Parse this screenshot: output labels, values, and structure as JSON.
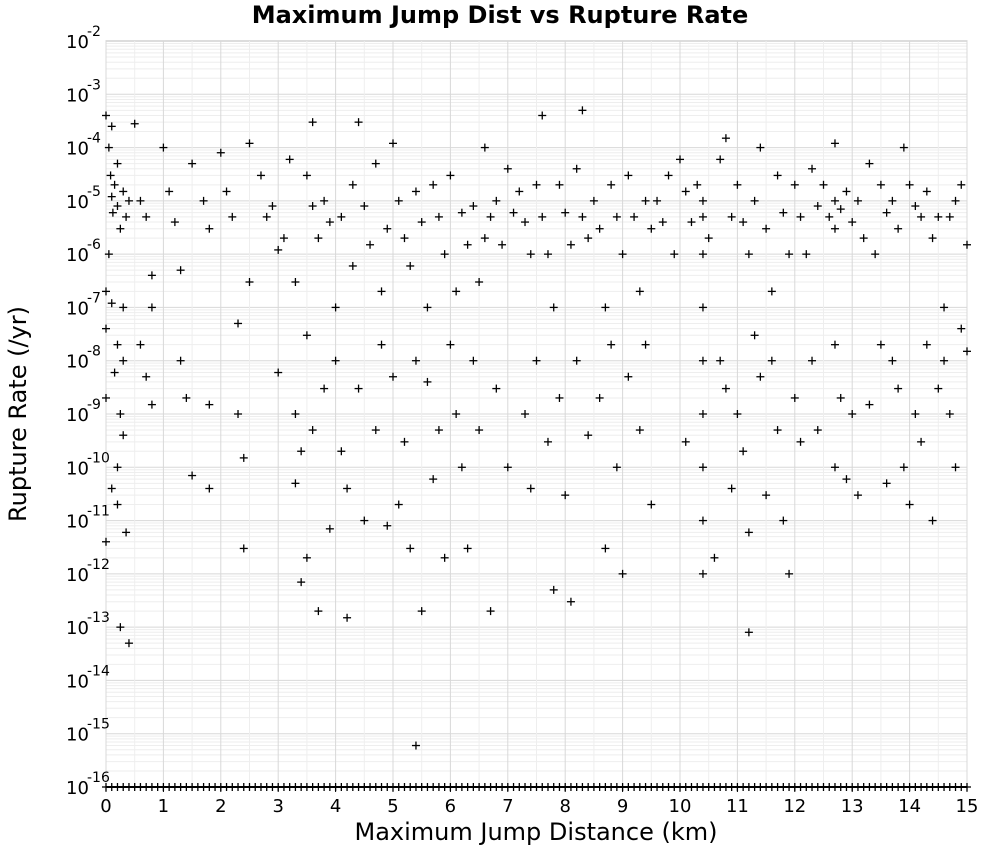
{
  "chart_data": {
    "type": "scatter",
    "title": "Maximum Jump Dist vs Rupture Rate",
    "xlabel": "Maximum Jump Distance (km)",
    "ylabel": "Rupture Rate (/yr)",
    "xlim": [
      0,
      15
    ],
    "ylim": [
      1e-16,
      0.01
    ],
    "yscale": "log",
    "grid": true,
    "marker": "+",
    "color": "#000000",
    "x_ticks": [
      "0",
      "1",
      "2",
      "3",
      "4",
      "5",
      "6",
      "7",
      "8",
      "9",
      "10",
      "11",
      "12",
      "13",
      "14",
      "15"
    ],
    "y_ticks": [
      {
        "base": "10",
        "exp": "-2"
      },
      {
        "base": "10",
        "exp": "-3"
      },
      {
        "base": "10",
        "exp": "-4"
      },
      {
        "base": "10",
        "exp": "-5"
      },
      {
        "base": "10",
        "exp": "-6"
      },
      {
        "base": "10",
        "exp": "-7"
      },
      {
        "base": "10",
        "exp": "-8"
      },
      {
        "base": "10",
        "exp": "-9"
      },
      {
        "base": "10",
        "exp": "-10"
      },
      {
        "base": "10",
        "exp": "-11"
      },
      {
        "base": "10",
        "exp": "-12"
      },
      {
        "base": "10",
        "exp": "-13"
      },
      {
        "base": "10",
        "exp": "-14"
      },
      {
        "base": "10",
        "exp": "-15"
      },
      {
        "base": "10",
        "exp": "-16"
      }
    ],
    "points": [
      [
        0.0,
        0.0004
      ],
      [
        0.05,
        0.0001
      ],
      [
        0.08,
        3e-05
      ],
      [
        0.1,
        1.2e-05
      ],
      [
        0.12,
        6e-06
      ],
      [
        0.15,
        2e-05
      ],
      [
        0.2,
        8e-06
      ],
      [
        0.25,
        3e-06
      ],
      [
        0.3,
        1.5e-05
      ],
      [
        0.35,
        5e-06
      ],
      [
        0.4,
        1e-05
      ],
      [
        0.1,
        0.00025
      ],
      [
        0.2,
        5e-05
      ],
      [
        0.05,
        1e-06
      ],
      [
        0.0,
        2e-07
      ],
      [
        0.1,
        1.2e-07
      ],
      [
        0.3,
        1e-07
      ],
      [
        0.0,
        4e-08
      ],
      [
        0.2,
        2e-08
      ],
      [
        0.3,
        1e-08
      ],
      [
        0.15,
        6e-09
      ],
      [
        0.0,
        2e-09
      ],
      [
        0.25,
        1e-09
      ],
      [
        0.3,
        4e-10
      ],
      [
        0.2,
        1e-10
      ],
      [
        0.1,
        4e-11
      ],
      [
        0.2,
        2e-11
      ],
      [
        0.35,
        6e-12
      ],
      [
        0.0,
        4e-12
      ],
      [
        0.25,
        1e-13
      ],
      [
        0.4,
        5e-14
      ],
      [
        0.5,
        0.00028
      ],
      [
        0.6,
        1e-05
      ],
      [
        0.7,
        5e-06
      ],
      [
        0.8,
        4e-07
      ],
      [
        0.8,
        1e-07
      ],
      [
        0.6,
        2e-08
      ],
      [
        0.7,
        5e-09
      ],
      [
        0.8,
        1.5e-09
      ],
      [
        1.0,
        0.0001
      ],
      [
        1.1,
        1.5e-05
      ],
      [
        1.2,
        4e-06
      ],
      [
        1.3,
        5e-07
      ],
      [
        1.3,
        1e-08
      ],
      [
        1.4,
        2e-09
      ],
      [
        1.5,
        5e-05
      ],
      [
        1.5,
        7e-11
      ],
      [
        1.7,
        1e-05
      ],
      [
        1.8,
        3e-06
      ],
      [
        1.8,
        1.5e-09
      ],
      [
        1.8,
        4e-11
      ],
      [
        2.0,
        8e-05
      ],
      [
        2.1,
        1.5e-05
      ],
      [
        2.2,
        5e-06
      ],
      [
        2.3,
        5e-08
      ],
      [
        2.3,
        1e-09
      ],
      [
        2.4,
        1.5e-10
      ],
      [
        2.4,
        3e-12
      ],
      [
        2.5,
        0.00012
      ],
      [
        2.5,
        3e-07
      ],
      [
        2.7,
        3e-05
      ],
      [
        2.8,
        5e-06
      ],
      [
        2.9,
        8e-06
      ],
      [
        3.0,
        1.2e-06
      ],
      [
        3.0,
        6e-09
      ],
      [
        3.1,
        2e-06
      ],
      [
        3.2,
        6e-05
      ],
      [
        3.3,
        3e-07
      ],
      [
        3.3,
        1e-09
      ],
      [
        3.3,
        5e-11
      ],
      [
        3.4,
        2e-10
      ],
      [
        3.4,
        7e-13
      ],
      [
        3.5,
        3e-05
      ],
      [
        3.5,
        3e-08
      ],
      [
        3.5,
        2e-12
      ],
      [
        3.6,
        0.0003
      ],
      [
        3.6,
        8e-06
      ],
      [
        3.6,
        5e-10
      ],
      [
        3.7,
        2e-06
      ],
      [
        3.7,
        2e-13
      ],
      [
        3.8,
        1e-05
      ],
      [
        3.8,
        3e-09
      ],
      [
        3.9,
        4e-06
      ],
      [
        3.9,
        7e-12
      ],
      [
        4.0,
        1e-07
      ],
      [
        4.0,
        1e-08
      ],
      [
        4.1,
        5e-06
      ],
      [
        4.1,
        2e-10
      ],
      [
        4.2,
        4e-11
      ],
      [
        4.2,
        1.5e-13
      ],
      [
        4.3,
        2e-05
      ],
      [
        4.3,
        6e-07
      ],
      [
        4.4,
        0.0003
      ],
      [
        4.4,
        3e-09
      ],
      [
        4.5,
        8e-06
      ],
      [
        4.5,
        1e-11
      ],
      [
        4.6,
        1.5e-06
      ],
      [
        4.7,
        5e-05
      ],
      [
        4.7,
        5e-10
      ],
      [
        4.8,
        2e-07
      ],
      [
        4.8,
        2e-08
      ],
      [
        4.9,
        3e-06
      ],
      [
        4.9,
        8e-12
      ],
      [
        5.0,
        0.00012
      ],
      [
        5.0,
        5e-09
      ],
      [
        5.1,
        1e-05
      ],
      [
        5.1,
        2e-11
      ],
      [
        5.2,
        2e-06
      ],
      [
        5.2,
        3e-10
      ],
      [
        5.3,
        6e-07
      ],
      [
        5.3,
        3e-12
      ],
      [
        5.4,
        1.5e-05
      ],
      [
        5.4,
        1e-08
      ],
      [
        5.4,
        6e-16
      ],
      [
        5.5,
        4e-06
      ],
      [
        5.5,
        2e-13
      ],
      [
        5.6,
        1e-07
      ],
      [
        5.6,
        4e-09
      ],
      [
        5.7,
        2e-05
      ],
      [
        5.7,
        6e-11
      ],
      [
        5.8,
        5e-06
      ],
      [
        5.8,
        5e-10
      ],
      [
        5.9,
        1e-06
      ],
      [
        5.9,
        2e-12
      ],
      [
        6.0,
        3e-05
      ],
      [
        6.0,
        2e-08
      ],
      [
        6.1,
        2e-07
      ],
      [
        6.1,
        1e-09
      ],
      [
        6.2,
        6e-06
      ],
      [
        6.2,
        1e-10
      ],
      [
        6.3,
        1.5e-06
      ],
      [
        6.3,
        3e-12
      ],
      [
        6.4,
        8e-06
      ],
      [
        6.4,
        1e-08
      ],
      [
        6.5,
        3e-07
      ],
      [
        6.5,
        5e-10
      ],
      [
        6.6,
        0.0001
      ],
      [
        6.6,
        2e-06
      ],
      [
        6.7,
        5e-06
      ],
      [
        6.7,
        2e-13
      ],
      [
        6.8,
        1e-05
      ],
      [
        6.8,
        3e-09
      ],
      [
        6.9,
        1.5e-06
      ],
      [
        7.0,
        4e-05
      ],
      [
        7.0,
        1e-10
      ],
      [
        7.1,
        6e-06
      ],
      [
        7.2,
        1.5e-05
      ],
      [
        7.3,
        4e-06
      ],
      [
        7.3,
        1e-09
      ],
      [
        7.4,
        1e-06
      ],
      [
        7.4,
        4e-11
      ],
      [
        7.5,
        2e-05
      ],
      [
        7.5,
        1e-08
      ],
      [
        7.6,
        5e-06
      ],
      [
        7.6,
        0.0004
      ],
      [
        7.7,
        1e-06
      ],
      [
        7.7,
        3e-10
      ],
      [
        7.8,
        1e-07
      ],
      [
        7.8,
        5e-13
      ],
      [
        7.9,
        2e-05
      ],
      [
        7.9,
        2e-09
      ],
      [
        8.0,
        6e-06
      ],
      [
        8.0,
        3e-11
      ],
      [
        8.1,
        1.5e-06
      ],
      [
        8.1,
        3e-13
      ],
      [
        8.2,
        4e-05
      ],
      [
        8.2,
        1e-08
      ],
      [
        8.3,
        0.0005
      ],
      [
        8.3,
        5e-06
      ],
      [
        8.4,
        2e-06
      ],
      [
        8.4,
        4e-10
      ],
      [
        8.5,
        1e-05
      ],
      [
        8.6,
        3e-06
      ],
      [
        8.6,
        2e-09
      ],
      [
        8.7,
        1e-07
      ],
      [
        8.7,
        3e-12
      ],
      [
        8.8,
        2e-05
      ],
      [
        8.8,
        2e-08
      ],
      [
        8.9,
        5e-06
      ],
      [
        8.9,
        1e-10
      ],
      [
        9.0,
        1e-06
      ],
      [
        9.0,
        1e-12
      ],
      [
        9.1,
        3e-05
      ],
      [
        9.1,
        5e-09
      ],
      [
        9.2,
        5e-06
      ],
      [
        9.3,
        2e-07
      ],
      [
        9.3,
        5e-10
      ],
      [
        9.4,
        1e-05
      ],
      [
        9.4,
        2e-08
      ],
      [
        9.5,
        3e-06
      ],
      [
        9.5,
        2e-11
      ],
      [
        9.6,
        1e-05
      ],
      [
        9.7,
        4e-06
      ],
      [
        9.8,
        3e-05
      ],
      [
        9.9,
        1e-06
      ],
      [
        10.0,
        6e-05
      ],
      [
        10.1,
        1.5e-05
      ],
      [
        10.1,
        3e-10
      ],
      [
        10.2,
        4e-06
      ],
      [
        10.3,
        2e-05
      ],
      [
        10.4,
        1e-05
      ],
      [
        10.4,
        5e-06
      ],
      [
        10.4,
        1e-06
      ],
      [
        10.4,
        1e-07
      ],
      [
        10.4,
        1e-08
      ],
      [
        10.4,
        1e-09
      ],
      [
        10.4,
        1e-10
      ],
      [
        10.4,
        1e-11
      ],
      [
        10.4,
        1e-12
      ],
      [
        10.5,
        2e-06
      ],
      [
        10.6,
        2e-12
      ],
      [
        10.7,
        6e-05
      ],
      [
        10.7,
        1e-08
      ],
      [
        10.8,
        0.00015
      ],
      [
        10.8,
        3e-09
      ],
      [
        10.9,
        5e-06
      ],
      [
        10.9,
        4e-11
      ],
      [
        11.0,
        2e-05
      ],
      [
        11.0,
        1e-09
      ],
      [
        11.1,
        4e-06
      ],
      [
        11.1,
        2e-10
      ],
      [
        11.2,
        1e-06
      ],
      [
        11.2,
        6e-12
      ],
      [
        11.2,
        8e-14
      ],
      [
        11.3,
        1e-05
      ],
      [
        11.3,
        3e-08
      ],
      [
        11.4,
        0.0001
      ],
      [
        11.4,
        5e-09
      ],
      [
        11.5,
        3e-06
      ],
      [
        11.5,
        3e-11
      ],
      [
        11.6,
        2e-07
      ],
      [
        11.6,
        1e-08
      ],
      [
        11.7,
        3e-05
      ],
      [
        11.7,
        5e-10
      ],
      [
        11.8,
        6e-06
      ],
      [
        11.8,
        1e-11
      ],
      [
        11.9,
        1e-06
      ],
      [
        11.9,
        1e-12
      ],
      [
        12.0,
        2e-05
      ],
      [
        12.0,
        2e-09
      ],
      [
        12.1,
        5e-06
      ],
      [
        12.1,
        3e-10
      ],
      [
        12.2,
        1e-06
      ],
      [
        12.3,
        4e-05
      ],
      [
        12.3,
        1e-08
      ],
      [
        12.4,
        8e-06
      ],
      [
        12.4,
        5e-10
      ],
      [
        12.5,
        2e-05
      ],
      [
        12.6,
        5e-06
      ],
      [
        12.7,
        0.00012
      ],
      [
        12.7,
        1e-05
      ],
      [
        12.7,
        3e-06
      ],
      [
        12.7,
        2e-08
      ],
      [
        12.7,
        1e-10
      ],
      [
        12.8,
        7e-06
      ],
      [
        12.8,
        2e-09
      ],
      [
        12.9,
        1.5e-05
      ],
      [
        12.9,
        6e-11
      ],
      [
        13.0,
        4e-06
      ],
      [
        13.0,
        1e-09
      ],
      [
        13.1,
        1e-05
      ],
      [
        13.1,
        3e-11
      ],
      [
        13.2,
        2e-06
      ],
      [
        13.3,
        5e-05
      ],
      [
        13.3,
        1.5e-09
      ],
      [
        13.4,
        1e-06
      ],
      [
        13.5,
        2e-05
      ],
      [
        13.5,
        2e-08
      ],
      [
        13.6,
        6e-06
      ],
      [
        13.6,
        5e-11
      ],
      [
        13.7,
        1e-05
      ],
      [
        13.7,
        1e-08
      ],
      [
        13.8,
        3e-06
      ],
      [
        13.8,
        3e-09
      ],
      [
        13.9,
        0.0001
      ],
      [
        13.9,
        1e-10
      ],
      [
        14.0,
        2e-05
      ],
      [
        14.0,
        2e-11
      ],
      [
        14.1,
        8e-06
      ],
      [
        14.1,
        1e-09
      ],
      [
        14.2,
        5e-06
      ],
      [
        14.2,
        3e-10
      ],
      [
        14.3,
        1.5e-05
      ],
      [
        14.3,
        2e-08
      ],
      [
        14.4,
        2e-06
      ],
      [
        14.4,
        1e-11
      ],
      [
        14.5,
        5e-06
      ],
      [
        14.5,
        3e-09
      ],
      [
        14.6,
        1e-07
      ],
      [
        14.6,
        1e-08
      ],
      [
        14.7,
        5e-06
      ],
      [
        14.7,
        1e-09
      ],
      [
        14.8,
        1e-05
      ],
      [
        14.8,
        1e-10
      ],
      [
        14.9,
        2e-05
      ],
      [
        14.9,
        4e-08
      ],
      [
        15.0,
        1.5e-06
      ],
      [
        15.0,
        1.5e-08
      ]
    ],
    "floor_points_x": [
      0.0,
      0.1,
      0.2,
      0.3,
      0.4,
      0.5,
      0.6,
      0.7,
      0.8,
      0.9,
      1.0,
      1.1,
      1.2,
      1.3,
      1.4,
      1.5,
      1.6,
      1.7,
      1.8,
      1.9,
      2.0,
      2.1,
      2.2,
      2.3,
      2.4,
      2.5,
      2.6,
      2.7,
      2.8,
      2.9,
      3.0,
      3.1,
      3.2,
      3.3,
      3.4,
      3.5,
      3.6,
      3.7,
      3.8,
      3.9,
      4.0,
      4.1,
      4.2,
      4.3,
      4.4,
      4.5,
      4.6,
      4.7,
      4.8,
      4.9,
      5.0,
      5.1,
      5.2,
      5.3,
      5.4,
      5.5,
      5.6,
      5.7,
      5.8,
      5.9,
      6.0,
      6.1,
      6.2,
      6.3,
      6.4,
      6.5,
      6.6,
      6.7,
      6.8,
      6.9,
      7.0,
      7.1,
      7.2,
      7.3,
      7.4,
      7.5,
      7.6,
      7.7,
      7.8,
      7.9,
      8.0,
      8.1,
      8.2,
      8.3,
      8.4,
      8.5,
      8.6,
      8.7,
      8.8,
      8.9,
      9.0,
      9.1,
      9.2,
      9.3,
      9.4,
      9.5,
      9.6,
      9.7,
      9.8,
      9.9,
      10.0,
      10.1,
      10.2,
      10.3,
      10.4,
      10.5,
      10.6,
      10.7,
      10.8,
      10.9,
      11.0,
      11.1,
      11.2,
      11.3,
      11.4,
      11.5,
      11.6,
      11.7,
      11.8,
      11.9,
      12.0,
      12.1,
      12.2,
      12.3,
      12.4,
      12.5,
      12.6,
      12.7,
      12.8,
      12.9,
      13.0,
      13.1,
      13.2,
      13.3,
      13.4,
      13.5,
      13.6,
      13.7,
      13.8,
      13.9,
      14.0,
      14.1,
      14.2,
      14.3,
      14.4,
      14.5,
      14.6,
      14.7,
      14.8,
      14.9,
      15.0
    ],
    "floor_value": 1e-16
  }
}
